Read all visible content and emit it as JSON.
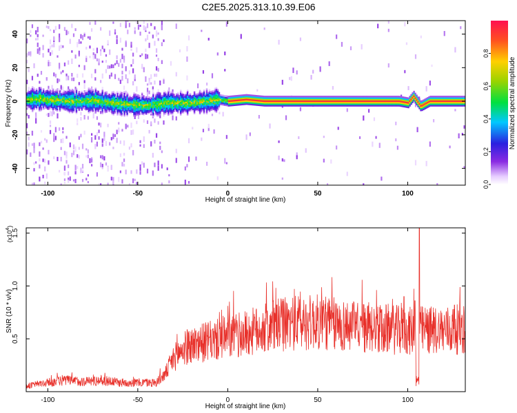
{
  "title": "C2E5.2025.313.10.39.E06",
  "chart_data": [
    {
      "type": "heatmap",
      "id": "spectrogram",
      "title": "",
      "xlabel": "Height of straight line (km)",
      "ylabel": "Frequency (Hz)",
      "xlim": [
        -112,
        132
      ],
      "ylim": [
        -50,
        48
      ],
      "xticks": [
        -100,
        -50,
        0,
        50,
        100
      ],
      "xtick_labels": [
        "-100",
        "-50",
        "0",
        "50",
        "100"
      ],
      "yticks": [
        -40,
        -20,
        0,
        20,
        40
      ],
      "ytick_labels": [
        "-40",
        "-20",
        "0",
        "20",
        "40"
      ],
      "colorbar": {
        "label": "Normalized spectral amplitude",
        "range": [
          0.0,
          1.0
        ],
        "ticks": [
          0.0,
          0.2,
          0.4,
          0.6,
          0.8
        ],
        "tick_labels": [
          "0.0",
          "0.2",
          "0.4",
          "0.6",
          "0.8"
        ]
      },
      "ridge_centers": [
        [
          -112,
          1
        ],
        [
          -105,
          1.5
        ],
        [
          -95,
          0.5
        ],
        [
          -85,
          0
        ],
        [
          -75,
          0.5
        ],
        [
          -65,
          -1
        ],
        [
          -55,
          -2
        ],
        [
          -45,
          -2.5
        ],
        [
          -35,
          -1
        ],
        [
          -25,
          -1
        ],
        [
          -15,
          -0.5
        ],
        [
          -5,
          1
        ],
        [
          0,
          0
        ],
        [
          10,
          1
        ],
        [
          20,
          0
        ],
        [
          60,
          0
        ],
        [
          95,
          0
        ],
        [
          100,
          -1
        ],
        [
          103,
          3
        ],
        [
          107,
          -3
        ],
        [
          112,
          0
        ],
        [
          132,
          0
        ]
      ]
    },
    {
      "type": "line",
      "id": "snr",
      "title": "",
      "xlabel": "Height of straight line (km)",
      "ylabel": "SNR (10 * v/v)",
      "ymultiplier": "(x10",
      "ymultiplier_exp": "4",
      "ymultiplier_close": ")",
      "xlim": [
        -112,
        132
      ],
      "ylim": [
        0,
        1.55
      ],
      "xticks": [
        -100,
        -50,
        0,
        50,
        100
      ],
      "xtick_labels": [
        "-100",
        "-50",
        "0",
        "50",
        "100"
      ],
      "yticks": [
        0.5,
        1.0,
        1.5
      ],
      "ytick_labels": [
        "0.5",
        "1.0",
        "1.5"
      ],
      "color": "#e8302a",
      "envelope": [
        [
          -112,
          0.05
        ],
        [
          -100,
          0.08
        ],
        [
          -90,
          0.1
        ],
        [
          -80,
          0.09
        ],
        [
          -70,
          0.1
        ],
        [
          -60,
          0.08
        ],
        [
          -50,
          0.08
        ],
        [
          -40,
          0.08
        ],
        [
          -35,
          0.15
        ],
        [
          -30,
          0.3
        ],
        [
          -25,
          0.38
        ],
        [
          -20,
          0.42
        ],
        [
          -10,
          0.45
        ],
        [
          0,
          0.48
        ],
        [
          10,
          0.52
        ],
        [
          20,
          0.56
        ],
        [
          30,
          0.6
        ],
        [
          40,
          0.62
        ],
        [
          50,
          0.62
        ],
        [
          60,
          0.6
        ],
        [
          70,
          0.58
        ],
        [
          80,
          0.56
        ],
        [
          90,
          0.56
        ],
        [
          100,
          0.54
        ],
        [
          110,
          0.55
        ],
        [
          120,
          0.55
        ],
        [
          132,
          0.56
        ]
      ],
      "peaks": [
        [
          104,
          0.86
        ],
        [
          106.5,
          1.55
        ],
        [
          126,
          0.82
        ],
        [
          85,
          0.75
        ],
        [
          98,
          0.9
        ]
      ]
    }
  ]
}
